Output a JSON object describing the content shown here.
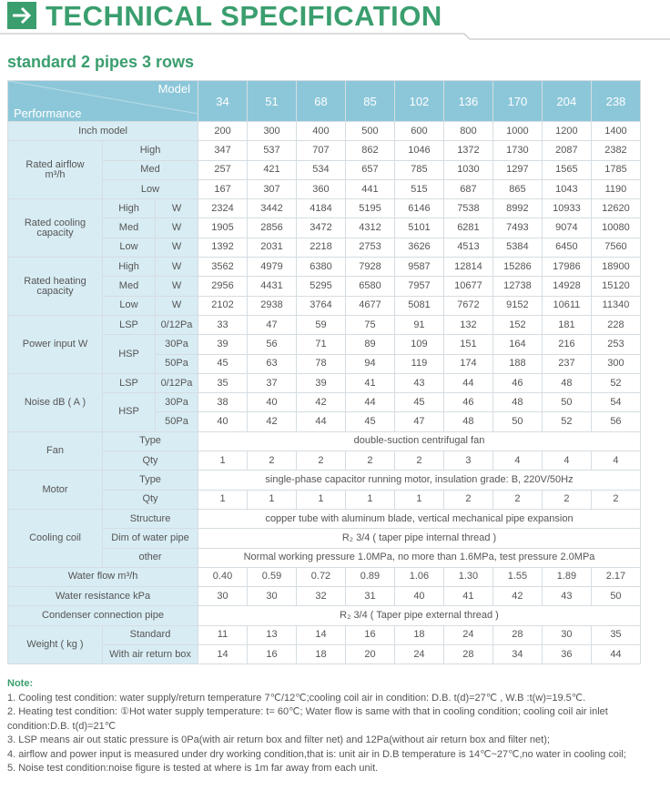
{
  "header": {
    "title": "TECHNICAL SPECIFICATION",
    "subtitle": "standard 2 pipes 3 rows"
  },
  "table": {
    "model_label": "Model",
    "performance_label": "Performance",
    "models": [
      "34",
      "51",
      "68",
      "85",
      "102",
      "136",
      "170",
      "204",
      "238"
    ],
    "sections": [
      {
        "label": "Inch model",
        "values": [
          200,
          300,
          400,
          500,
          600,
          800,
          1000,
          1200,
          1400
        ]
      },
      {
        "label": "Rated airflow\nm³/h",
        "rows": [
          {
            "sub": "High",
            "values": [
              347,
              537,
              707,
              862,
              1046,
              1372,
              1730,
              2087,
              2382
            ]
          },
          {
            "sub": "Med",
            "values": [
              257,
              421,
              534,
              657,
              785,
              1030,
              1297,
              1565,
              1785
            ]
          },
          {
            "sub": "Low",
            "values": [
              167,
              307,
              360,
              441,
              515,
              687,
              865,
              1043,
              1190
            ]
          }
        ]
      },
      {
        "label": "Rated cooling\ncapacity",
        "rows": [
          {
            "sub": "High",
            "rows": [
              {
                "sub2": "W",
                "values": [
                  2324,
                  3442,
                  4184,
                  5195,
                  6146,
                  7538,
                  8992,
                  10933,
                  12620
                ]
              }
            ]
          },
          {
            "sub": "Med",
            "rows": [
              {
                "sub2": "W",
                "values": [
                  1905,
                  2856,
                  3472,
                  4312,
                  5101,
                  6281,
                  7493,
                  9074,
                  10080
                ]
              }
            ]
          },
          {
            "sub": "Low",
            "rows": [
              {
                "sub2": "W",
                "values": [
                  1392,
                  2031,
                  2218,
                  2753,
                  3626,
                  4513,
                  5384,
                  6450,
                  7560
                ]
              }
            ]
          }
        ]
      },
      {
        "label": "Rated heating\ncapacity",
        "rows": [
          {
            "sub": "High",
            "rows": [
              {
                "sub2": "W",
                "values": [
                  3562,
                  4979,
                  6380,
                  7928,
                  9587,
                  12814,
                  15286,
                  17986,
                  18900
                ]
              }
            ]
          },
          {
            "sub": "Med",
            "rows": [
              {
                "sub2": "W",
                "values": [
                  2956,
                  4431,
                  5295,
                  6580,
                  7957,
                  10677,
                  12738,
                  14928,
                  15120
                ]
              }
            ]
          },
          {
            "sub": "Low",
            "rows": [
              {
                "sub2": "W",
                "values": [
                  2102,
                  2938,
                  3764,
                  4677,
                  5081,
                  7672,
                  9152,
                  10611,
                  11340
                ]
              }
            ]
          }
        ]
      },
      {
        "label": "Power input W",
        "rows": [
          {
            "sub": "LSP",
            "rows": [
              {
                "sub2": "0/12Pa",
                "values": [
                  33,
                  47,
                  59,
                  75,
                  91,
                  132,
                  152,
                  181,
                  228
                ]
              }
            ]
          },
          {
            "sub": "HSP",
            "rows": [
              {
                "sub2": "30Pa",
                "values": [
                  39,
                  56,
                  71,
                  89,
                  109,
                  151,
                  164,
                  216,
                  253
                ]
              },
              {
                "sub2": "50Pa",
                "values": [
                  45,
                  63,
                  78,
                  94,
                  119,
                  174,
                  188,
                  237,
                  300
                ]
              }
            ]
          }
        ]
      },
      {
        "label": "Noise dB ( A )",
        "rows": [
          {
            "sub": "LSP",
            "rows": [
              {
                "sub2": "0/12Pa",
                "values": [
                  35,
                  37,
                  39,
                  41,
                  43,
                  44,
                  46,
                  48,
                  52
                ]
              }
            ]
          },
          {
            "sub": "HSP",
            "rows": [
              {
                "sub2": "30Pa",
                "values": [
                  38,
                  40,
                  42,
                  44,
                  45,
                  46,
                  48,
                  50,
                  54
                ]
              },
              {
                "sub2": "50Pa",
                "values": [
                  40,
                  42,
                  44,
                  45,
                  47,
                  48,
                  50,
                  52,
                  56
                ]
              }
            ]
          }
        ]
      },
      {
        "label": "Fan",
        "rows": [
          {
            "sub": "Type",
            "text": "double-suction centrifugal fan"
          },
          {
            "sub": "Qty",
            "values": [
              1,
              2,
              2,
              2,
              2,
              3,
              4,
              4,
              4
            ]
          }
        ]
      },
      {
        "label": "Motor",
        "rows": [
          {
            "sub": "Type",
            "text": "single-phase capacitor running motor, insulation grade: B, 220V/50Hz"
          },
          {
            "sub": "Qty",
            "values": [
              1,
              1,
              1,
              1,
              1,
              2,
              2,
              2,
              2
            ]
          }
        ]
      },
      {
        "label": "Cooling coil",
        "rows": [
          {
            "sub": "Structure",
            "text": "copper tube with aluminum blade, vertical mechanical pipe expansion"
          },
          {
            "sub": "Dim of water pipe",
            "text": "R₂ 3/4 ( taper pipe internal thread )"
          },
          {
            "sub": "other",
            "text": "Normal working pressure 1.0MPa, no more than 1.6MPa, test pressure 2.0MPa"
          }
        ]
      },
      {
        "label": "Water flow m³/h",
        "values": [
          "0.40",
          "0.59",
          "0.72",
          "0.89",
          "1.06",
          "1.30",
          "1.55",
          "1.89",
          "2.17"
        ]
      },
      {
        "label": "Water resistance kPa",
        "values": [
          30,
          30,
          32,
          31,
          40,
          41,
          42,
          43,
          50
        ]
      },
      {
        "label": "Condenser connection pipe",
        "text": "R₂ 3/4 ( Taper pipe external thread )"
      },
      {
        "label": "Weight ( kg )",
        "rows": [
          {
            "sub": "Standard",
            "values": [
              11,
              13,
              14,
              16,
              18,
              24,
              28,
              30,
              35
            ]
          },
          {
            "sub": "With air return box",
            "values": [
              14,
              16,
              18,
              20,
              24,
              28,
              34,
              36,
              44
            ]
          }
        ]
      }
    ]
  },
  "notes": {
    "heading": "Note:",
    "items": [
      "1. Cooling test condition: water supply/return temperature 7℃/12℃;cooling coil air in condition: D.B. t(d)=27℃ , W.B :t(w)=19.5℃.",
      "2. Heating test condition: ①Hot water supply temperature: t= 60℃; Water flow is same with that in cooling condition; cooling coil air inlet condition:D.B. t(d)=21℃",
      "3. LSP means air out static pressure is 0Pa(with air return box and filter net) and 12Pa(without air return box and filter net);",
      "4. airflow and power input is measured under dry working condition,that is: unit air in D.B temperature is 14℃~27℃,no water in cooling coil;",
      "5. Noise test condition:noise figure is tested at where is 1m far away from each unit."
    ]
  }
}
